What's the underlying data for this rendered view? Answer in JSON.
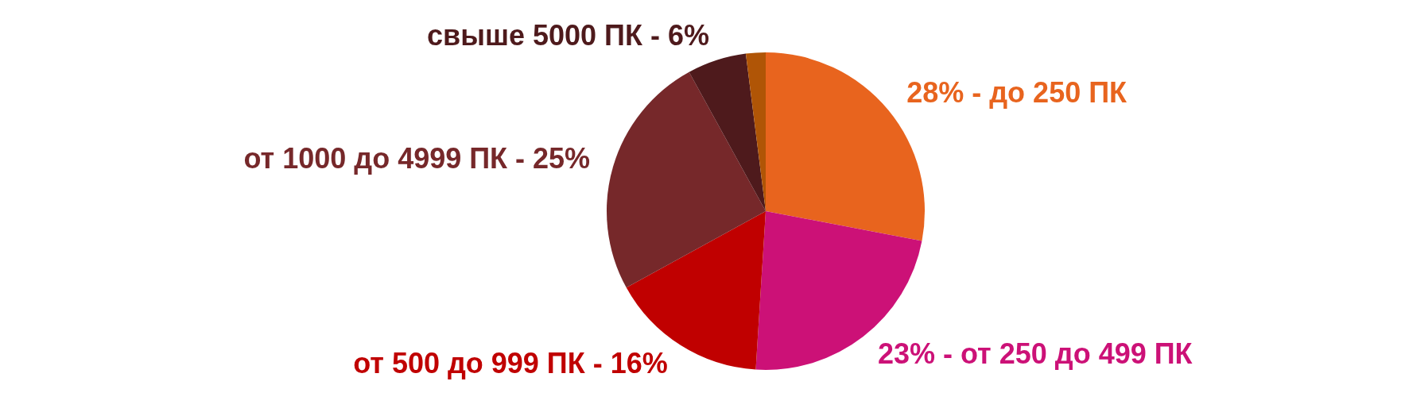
{
  "chart_data": {
    "type": "pie",
    "categories": [
      "28% - до 250 ПК",
      "23% - от 250 до 499 ПК",
      "от 500 до 999 ПК - 16%",
      "от 1000 до 4999 ПК - 25%",
      "свыше 5000 ПК - 6%",
      null
    ],
    "values": [
      28,
      23,
      16,
      25,
      6,
      2
    ],
    "colors": [
      "#e8641e",
      "#cc1177",
      "#c00000",
      "#76282a",
      "#4e1a1c",
      "#b05506"
    ]
  }
}
